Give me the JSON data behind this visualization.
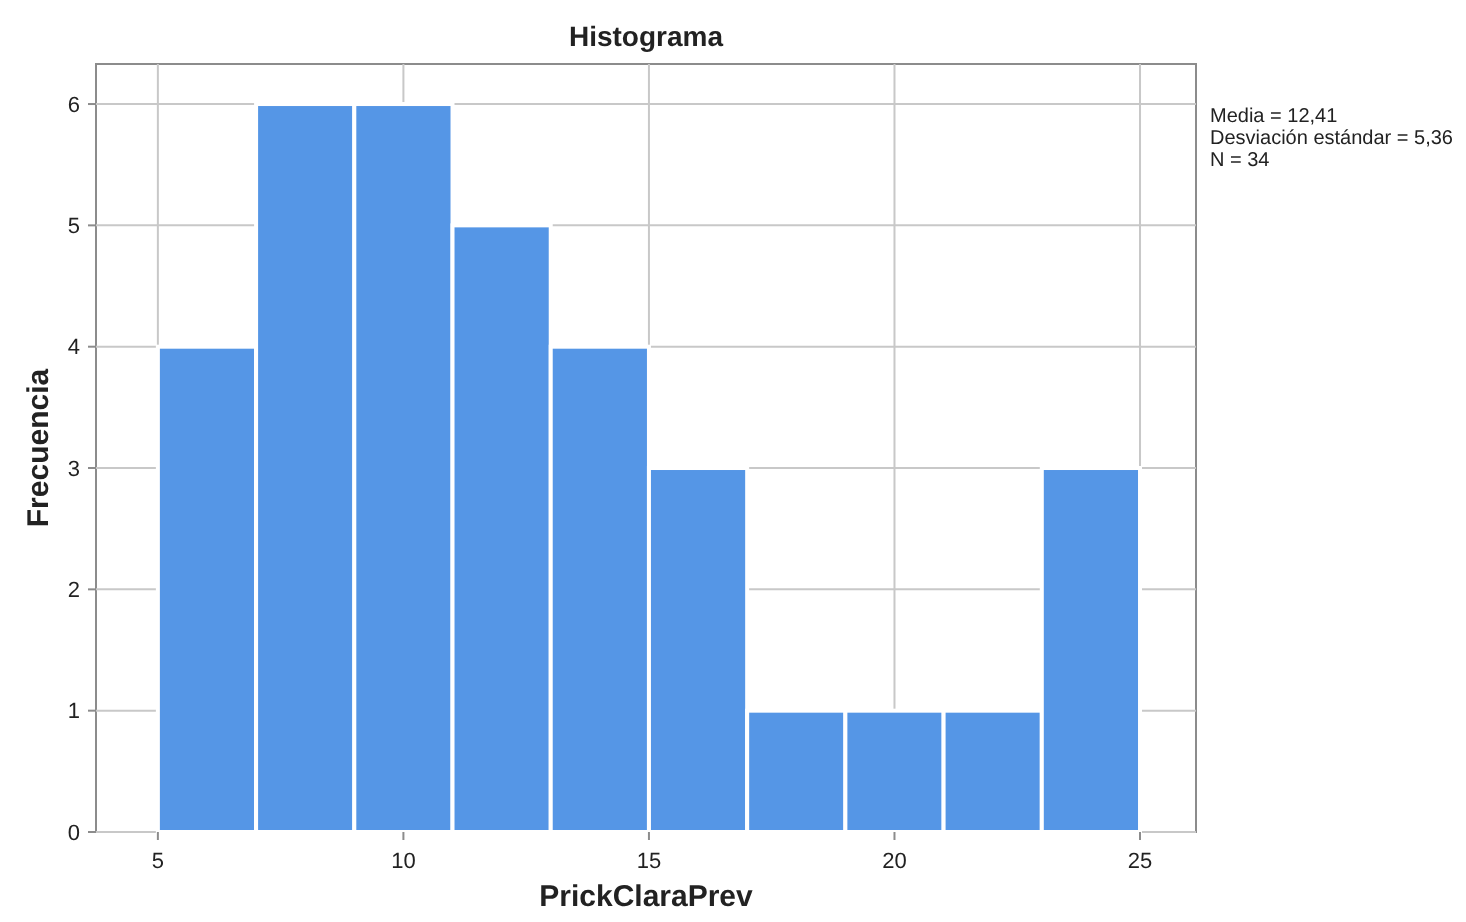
{
  "chart_data": {
    "type": "histogram",
    "title": "Histograma",
    "xlabel": "PrickClaraPrev",
    "ylabel": "Frecuencia",
    "bins": [
      5,
      7,
      9,
      11,
      13,
      15,
      17,
      19,
      21,
      23,
      25
    ],
    "values": [
      4,
      6,
      6,
      5,
      4,
      3,
      1,
      1,
      1,
      3
    ],
    "color": "#5596e6",
    "xlim": [
      3.74,
      26.14
    ],
    "xticks": [
      5,
      10,
      15,
      20,
      25
    ],
    "ylim": [
      0,
      6.33
    ],
    "yticks": [
      0,
      1,
      2,
      3,
      4,
      5,
      6
    ],
    "grid": true,
    "annotations": [
      "Media = 12,41",
      "Desviación estándar = 5,36",
      "N = 34"
    ]
  }
}
